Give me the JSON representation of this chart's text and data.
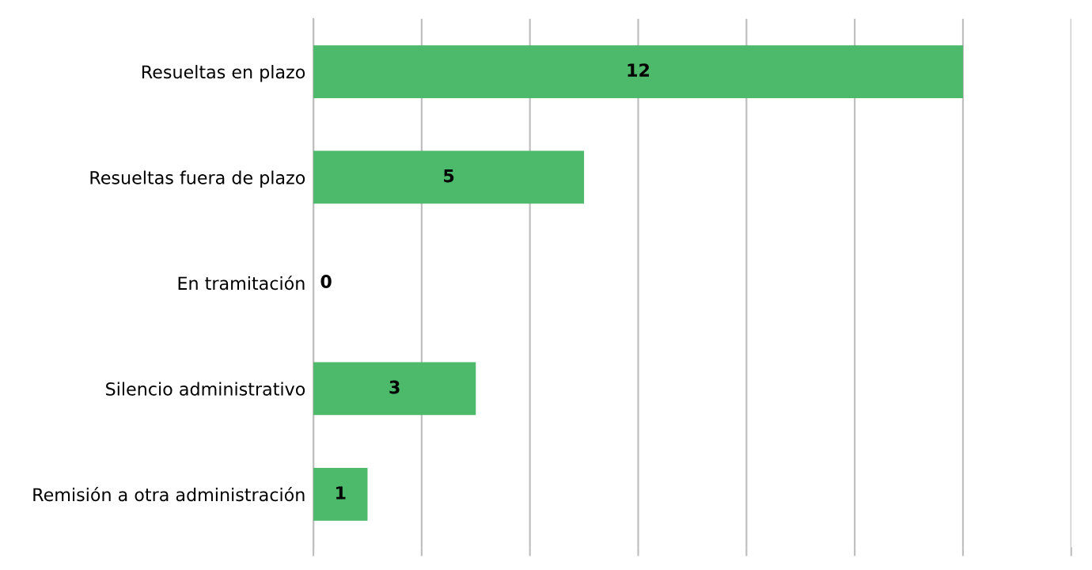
{
  "chart_data": {
    "type": "bar",
    "orientation": "horizontal",
    "categories": [
      "Resueltas en plazo",
      "Resueltas fuera de plazo",
      "En tramitación",
      "Silencio administrativo",
      "Remisión a otra administración"
    ],
    "values": [
      12,
      5,
      0,
      3,
      1
    ],
    "color": "#4cb96b",
    "xlim": [
      0,
      14
    ],
    "xticks": [
      {
        "value": 0,
        "label": null
      },
      {
        "value": 2,
        "label": null
      },
      {
        "value": 4,
        "label": null
      },
      {
        "value": 6,
        "label": null
      },
      {
        "value": 8,
        "label": null
      },
      {
        "value": 10,
        "label": null
      },
      {
        "value": 12,
        "label": null
      },
      {
        "value": 14,
        "label": null
      }
    ],
    "tick_labels": "y",
    "grid": "x",
    "data_labels": true,
    "legend": false
  }
}
